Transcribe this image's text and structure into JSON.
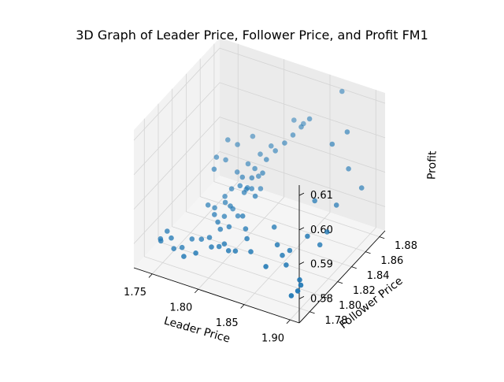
{
  "chart_data": {
    "type": "scatter",
    "projection": "3d",
    "title": "3D Graph of Leader Price, Follower Price, and Profit FM1",
    "xlabel": "Leader Price",
    "ylabel": "Follower Price",
    "zlabel": "Profit",
    "xlim": [
      1.73,
      1.91
    ],
    "ylim": [
      1.765,
      1.888
    ],
    "zlim": [
      0.573,
      0.613
    ],
    "xticks": [
      "1.75",
      "1.80",
      "1.85",
      "1.90"
    ],
    "yticks": [
      "1.78",
      "1.80",
      "1.82",
      "1.84",
      "1.86",
      "1.88"
    ],
    "zticks": [
      "0.58",
      "0.59",
      "0.60",
      "0.61"
    ],
    "grid": true,
    "marker_color": "#1f77b4",
    "points": [
      [
        1.807,
        1.837,
        0.593
      ],
      [
        1.815,
        1.843,
        0.595
      ],
      [
        1.821,
        1.848,
        0.597
      ],
      [
        1.828,
        1.852,
        0.599
      ],
      [
        1.834,
        1.856,
        0.601
      ],
      [
        1.84,
        1.86,
        0.603
      ],
      [
        1.846,
        1.864,
        0.605
      ],
      [
        1.787,
        1.838,
        0.59
      ],
      [
        1.795,
        1.843,
        0.592
      ],
      [
        1.803,
        1.85,
        0.594
      ],
      [
        1.811,
        1.855,
        0.596
      ],
      [
        1.798,
        1.831,
        0.591
      ],
      [
        1.805,
        1.829,
        0.589
      ],
      [
        1.79,
        1.826,
        0.588
      ],
      [
        1.785,
        1.823,
        0.586
      ],
      [
        1.8,
        1.834,
        0.587
      ],
      [
        1.808,
        1.841,
        0.59
      ],
      [
        1.814,
        1.836,
        0.588
      ],
      [
        1.796,
        1.82,
        0.584
      ],
      [
        1.803,
        1.818,
        0.583
      ],
      [
        1.78,
        1.815,
        0.584
      ],
      [
        1.792,
        1.813,
        0.583
      ],
      [
        1.775,
        1.812,
        0.585
      ],
      [
        1.771,
        1.826,
        0.592
      ],
      [
        1.769,
        1.832,
        0.594
      ],
      [
        1.776,
        1.836,
        0.593
      ],
      [
        1.773,
        1.843,
        0.597
      ],
      [
        1.782,
        1.845,
        0.596
      ],
      [
        1.791,
        1.855,
        0.597
      ],
      [
        1.826,
        1.868,
        0.602
      ],
      [
        1.834,
        1.871,
        0.601
      ],
      [
        1.879,
        1.853,
        0.603
      ],
      [
        1.893,
        1.858,
        0.596
      ],
      [
        1.89,
        1.86,
        0.606
      ],
      [
        1.873,
        1.875,
        0.613
      ],
      [
        1.895,
        1.838,
        0.59
      ],
      [
        1.908,
        1.857,
        0.592
      ],
      [
        1.9,
        1.818,
        0.587
      ],
      [
        1.879,
        1.828,
        0.592
      ],
      [
        1.896,
        1.813,
        0.584
      ],
      [
        1.887,
        1.807,
        0.587
      ],
      [
        1.87,
        1.804,
        0.582
      ],
      [
        1.847,
        1.812,
        0.585
      ],
      [
        1.858,
        1.802,
        0.583
      ],
      [
        1.865,
        1.8,
        0.581
      ],
      [
        1.873,
        1.795,
        0.58
      ],
      [
        1.893,
        1.788,
        0.579
      ],
      [
        1.898,
        1.783,
        0.579
      ],
      [
        1.9,
        1.776,
        0.579
      ],
      [
        1.893,
        1.776,
        0.577
      ],
      [
        1.86,
        1.783,
        0.581
      ],
      [
        1.836,
        1.793,
        0.581
      ],
      [
        1.828,
        1.798,
        0.583
      ],
      [
        1.822,
        1.804,
        0.584
      ],
      [
        1.815,
        1.809,
        0.586
      ],
      [
        1.804,
        1.804,
        0.583
      ],
      [
        1.796,
        1.802,
        0.582
      ],
      [
        1.791,
        1.805,
        0.583
      ],
      [
        1.785,
        1.808,
        0.584
      ],
      [
        1.788,
        1.797,
        0.58
      ],
      [
        1.78,
        1.796,
        0.579
      ],
      [
        1.772,
        1.793,
        0.579
      ],
      [
        1.765,
        1.788,
        0.577
      ],
      [
        1.759,
        1.784,
        0.577
      ],
      [
        1.754,
        1.787,
        0.579
      ],
      [
        1.748,
        1.789,
        0.58
      ],
      [
        1.743,
        1.786,
        0.578
      ],
      [
        1.745,
        1.784,
        0.578
      ],
      [
        1.776,
        1.776,
        0.578
      ],
      [
        1.786,
        1.78,
        0.579
      ],
      [
        1.797,
        1.788,
        0.58
      ],
      [
        1.808,
        1.792,
        0.581
      ],
      [
        1.82,
        1.792,
        0.58
      ],
      [
        1.814,
        1.79,
        0.58
      ],
      [
        1.803,
        1.791,
        0.58
      ],
      [
        1.809,
        1.83,
        0.592
      ],
      [
        1.817,
        1.835,
        0.593
      ],
      [
        1.806,
        1.823,
        0.589
      ],
      [
        1.8,
        1.825,
        0.59
      ],
      [
        1.812,
        1.826,
        0.59
      ],
      [
        1.818,
        1.823,
        0.589
      ],
      [
        1.79,
        1.817,
        0.586
      ],
      [
        1.797,
        1.815,
        0.586
      ]
    ]
  }
}
